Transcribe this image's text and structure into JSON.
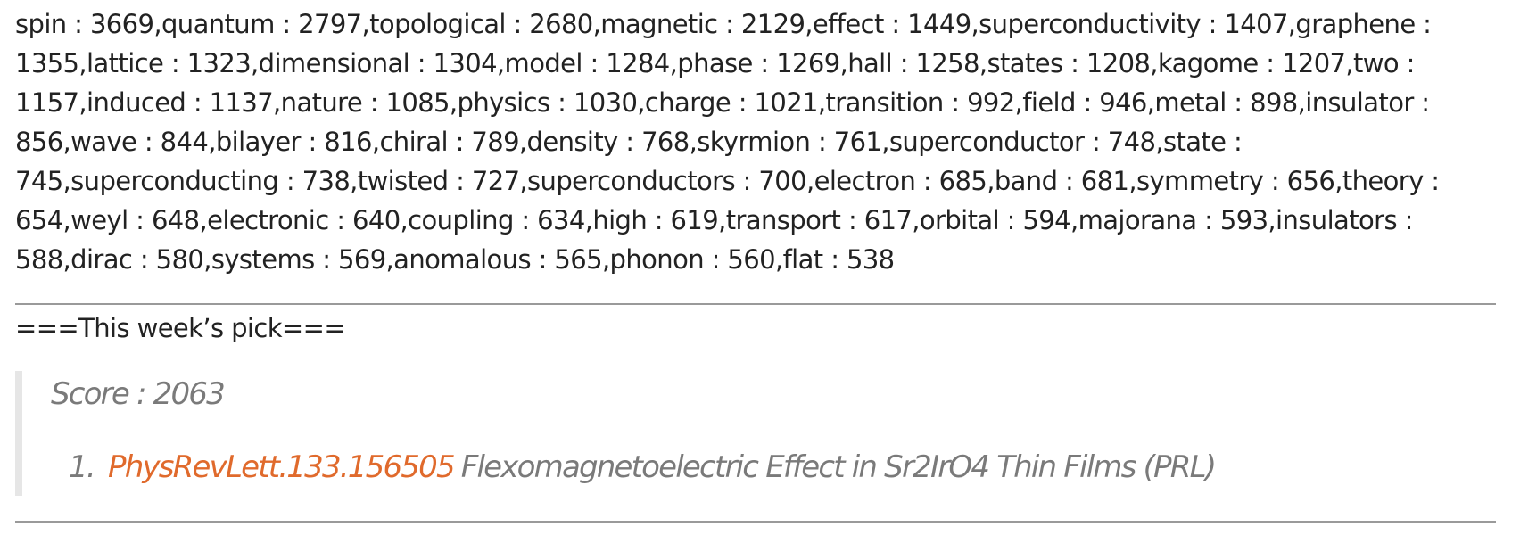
{
  "keywords_text": "spin : 3669,quantum : 2797,topological : 2680,magnetic : 2129,effect : 1449,superconductivity : 1407,graphene : 1355,lattice : 1323,dimensional : 1304,model : 1284,phase : 1269,hall : 1258,states : 1208,kagome : 1207,two : 1157,induced : 1137,nature : 1085,physics : 1030,charge : 1021,transition : 992,field : 946,metal : 898,insulator : 856,wave : 844,bilayer : 816,chiral : 789,density : 768,skyrmion : 761,superconductor : 748,state : 745,superconducting : 738,twisted : 727,superconductors : 700,electron : 685,band : 681,symmetry : 656,theory : 654,weyl : 648,electronic : 640,coupling : 634,high : 619,transport : 617,orbital : 594,majorana : 593,insulators : 588,dirac : 580,systems : 569,anomalous : 565,phonon : 560,flat : 538",
  "pick": {
    "heading": "===This week’s pick===",
    "score_label": "Score : 2063",
    "items": [
      {
        "index": "1.",
        "link_text": "PhysRevLett.133.156505",
        "title": "Flexomagnetoelectric Effect in Sr2IrO4 Thin Films (PRL)"
      }
    ]
  },
  "colors": {
    "link": "#e06a2c",
    "muted_text": "#7a7a7a",
    "divider": "#9a9a9a",
    "quote_bar": "#e6e6e6"
  }
}
